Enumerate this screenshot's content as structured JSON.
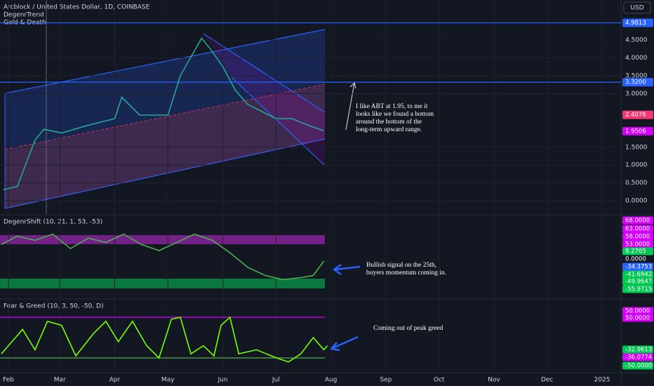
{
  "header": {
    "title": "Arcblock / United States Dollar, 1D, COINBASE",
    "indicators": [
      "DegenrTrend",
      "Gold & Death"
    ],
    "currency": "USD"
  },
  "chart_data": [
    {
      "type": "line",
      "x": [
        -3,
        5,
        15,
        20,
        30,
        44,
        60,
        64,
        74,
        90,
        97,
        109,
        114,
        121,
        128,
        135,
        151,
        160,
        170,
        178
      ],
      "values": [
        0.31,
        0.4,
        1.7,
        2.0,
        1.9,
        2.1,
        2.3,
        2.9,
        2.4,
        2.4,
        3.5,
        4.55,
        4.25,
        3.75,
        3.1,
        2.7,
        2.3,
        2.3,
        2.1,
        1.96
      ],
      "color": "#26a69a",
      "xlim": [
        -4.75,
        345.7
      ],
      "xticks": [
        {
          "value": 0,
          "label": "Feb"
        },
        {
          "value": 29,
          "label": "Mar"
        },
        {
          "value": 60,
          "label": "Apr"
        },
        {
          "value": 90,
          "label": "May"
        },
        {
          "value": 121,
          "label": "Jun"
        },
        {
          "value": 151,
          "label": "Jul"
        },
        {
          "value": 182,
          "label": "Aug"
        },
        {
          "value": 213,
          "label": "Sep"
        },
        {
          "value": 243,
          "label": "Oct"
        },
        {
          "value": 274,
          "label": "Nov"
        },
        {
          "value": 304,
          "label": "Dec"
        },
        {
          "value": 335,
          "label": "2025"
        }
      ],
      "ylim": [
        -0.37,
        5.62
      ],
      "yticks": [
        {
          "value": 4.5,
          "label": "4.5000"
        },
        {
          "value": 4,
          "label": "4.0000"
        },
        {
          "value": 3.5,
          "label": "3.5000"
        },
        {
          "value": 3,
          "label": "3.0000"
        },
        {
          "value": 1.5,
          "label": "1.5000"
        },
        {
          "value": 1,
          "label": "1.0000"
        },
        {
          "value": 0.5,
          "label": "0.5000"
        },
        {
          "value": 0,
          "label": "0.0000"
        }
      ],
      "grid": true,
      "price_tags": [
        {
          "value": 4.9813,
          "label": "4.9813",
          "color": "#2962ff"
        },
        {
          "value": 3.32,
          "label": "3.3200",
          "color": "#2962ff"
        },
        {
          "value": 2.4076,
          "label": "2.4076",
          "color": "#f23674"
        },
        {
          "value": 1.9506,
          "label": "1.9506",
          "color": "#d500f9"
        }
      ],
      "annotation": [
        "I like ABT at 1.95, to me it",
        "looks like we found a bottom",
        "around the bottom of the",
        "long-term upward range."
      ]
    },
    {
      "type": "line",
      "title": "DegenrShift (10, 21, 1, 53, -53)",
      "x": [
        -4,
        5,
        15,
        25,
        35,
        45,
        55,
        65,
        75,
        85,
        95,
        105,
        115,
        125,
        135,
        145,
        155,
        165,
        172,
        178
      ],
      "values": [
        30,
        50,
        40,
        55,
        20,
        45,
        35,
        55,
        30,
        15,
        35,
        55,
        40,
        10,
        -25,
        -45,
        -55,
        -50,
        -45,
        -10
      ],
      "color": "#4caf50",
      "xlim": [
        -4.75,
        345.7
      ],
      "ylim": [
        -100,
        100
      ],
      "tags": [
        {
          "label": "68.0000",
          "color": "#d500f9"
        },
        {
          "label": "63.0000",
          "color": "#d500f9"
        },
        {
          "label": "58.0000",
          "color": "#d500f9"
        },
        {
          "label": "53.0000",
          "color": "#d500f9"
        },
        {
          "label": "8.2705",
          "color": "#00c853"
        },
        {
          "label": "0.0000",
          "color": "#131722"
        },
        {
          "label": "-34.3753",
          "color": "#2962ff"
        },
        {
          "label": "-41.6942",
          "color": "#00c853"
        },
        {
          "label": "-49.9647",
          "color": "#00c853"
        },
        {
          "label": "-55.9715",
          "color": "#00c853"
        }
      ],
      "annotation": [
        "Bullish signal on the 25th,",
        "buyers momentum coming in."
      ]
    },
    {
      "type": "line",
      "title": "Fear & Greed (10, 3, 50, -50, D)",
      "x": [
        -4,
        0,
        8,
        15,
        22,
        30,
        38,
        48,
        55,
        62,
        70,
        78,
        85,
        92,
        97,
        103,
        110,
        116,
        120,
        125,
        130,
        140,
        150,
        158,
        165,
        172,
        178,
        180
      ],
      "values": [
        -40,
        -20,
        20,
        -30,
        40,
        30,
        -45,
        10,
        40,
        -10,
        40,
        -20,
        -50,
        45,
        50,
        -40,
        -20,
        -45,
        30,
        50,
        -40,
        -30,
        -48,
        -60,
        -40,
        0,
        -30,
        -20
      ],
      "color": "#76ff03",
      "xlim": [
        -4.75,
        345.7
      ],
      "ylim": [
        -84.5,
        91.4
      ],
      "hlines": [
        {
          "value": 50,
          "color": "#d500f9"
        },
        {
          "value": -50,
          "color": "#4caf50"
        }
      ],
      "tags": [
        {
          "label": "50.0000",
          "color": "#d500f9"
        },
        {
          "label": "50.0000",
          "color": "#d500f9"
        },
        {
          "label": "-32.9613",
          "color": "#00c853"
        },
        {
          "label": "-36.0774",
          "color": "#d500f9"
        },
        {
          "label": "-50.0000",
          "color": "#00c853"
        }
      ],
      "annotation": [
        "Coming out of peak greed"
      ]
    }
  ]
}
